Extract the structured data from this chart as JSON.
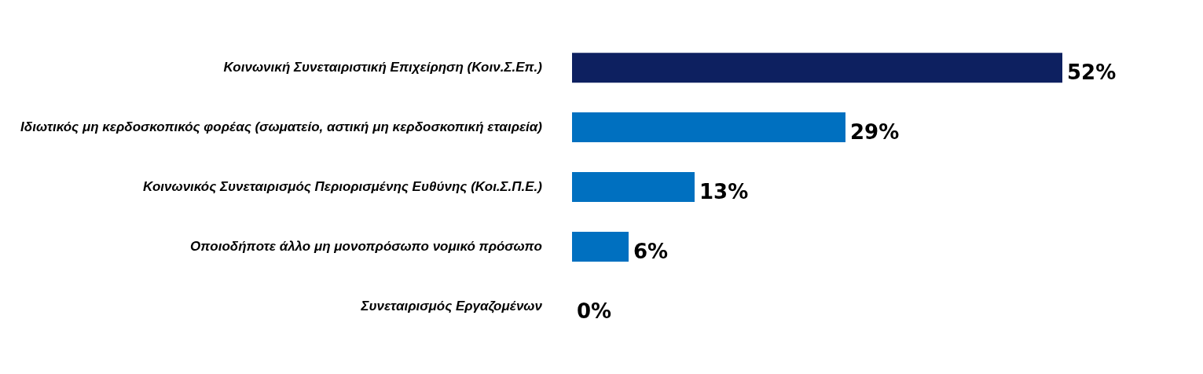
{
  "chart_data": {
    "type": "bar",
    "orientation": "horizontal",
    "tick_labels": "y",
    "legend": false,
    "categories": [
      "Κοινωνική Συνεταιριστική Επιχείρηση (Κοιν.Σ.Επ.)",
      "Ιδιωτικός μη κερδοσκοπικός φορέας (σωματείο, αστική μη κερδοσκοπική εταιρεία)",
      "Κοινωνικός Συνεταιρισμός Περιορισμένης Ευθύνης (Κοι.Σ.Π.Ε.)",
      "Οποιοδήποτε άλλο μη μονοπρόσωπο νομικό πρόσωπο",
      "Συνεταιρισμός Εργαζομένων"
    ],
    "values": [
      52,
      29,
      13,
      6,
      0
    ],
    "colors": [
      "#0d2060",
      "#0070c0",
      "#0070c0",
      "#0070c0",
      "#0070c0"
    ],
    "value_labels": [
      "52%",
      "29%",
      "13%",
      "6%",
      "0%"
    ]
  }
}
